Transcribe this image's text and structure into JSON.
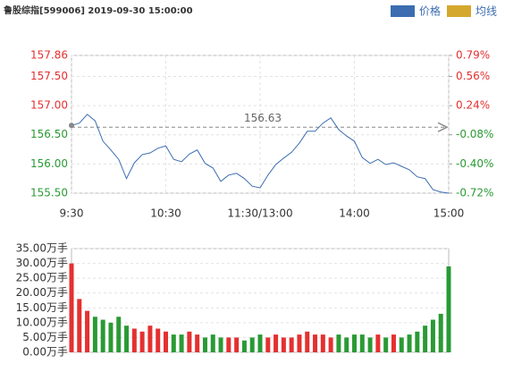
{
  "chart_data": [
    {
      "type": "line",
      "title": "鲁股综指[599006] 2019-09-30 15:00:00",
      "x": [
        0,
        5,
        10,
        15,
        20,
        25,
        30,
        35,
        40,
        45,
        50,
        55,
        60,
        65,
        70,
        75,
        80,
        85,
        90,
        95,
        100,
        105,
        110,
        115,
        120,
        125,
        130,
        135,
        140,
        145,
        150,
        155,
        160,
        165,
        170,
        175,
        180,
        185,
        190,
        195,
        200,
        205,
        210,
        215,
        220,
        225,
        230,
        235,
        240
      ],
      "series": [
        {
          "name": "价格",
          "color": "#3b6db0",
          "values": [
            156.66,
            156.7,
            156.85,
            156.74,
            156.39,
            156.24,
            156.08,
            155.75,
            156.02,
            156.16,
            156.19,
            156.27,
            156.31,
            156.08,
            156.04,
            156.17,
            156.24,
            156.01,
            155.93,
            155.7,
            155.81,
            155.84,
            155.75,
            155.62,
            155.59,
            155.81,
            155.99,
            156.1,
            156.2,
            156.36,
            156.56,
            156.56,
            156.7,
            156.79,
            156.59,
            156.48,
            156.39,
            156.11,
            156.01,
            156.08,
            155.99,
            156.02,
            155.96,
            155.9,
            155.78,
            155.75,
            155.56,
            155.52,
            155.5
          ]
        },
        {
          "name": "均线",
          "color": "#d4a82c"
        }
      ],
      "ref_value": 156.63,
      "xlim": [
        0,
        240
      ],
      "xticks": [
        {
          "value": 0,
          "label": "9:30"
        },
        {
          "value": 60,
          "label": "10:30"
        },
        {
          "value": 120,
          "label": "11:30/13:00"
        },
        {
          "value": 180,
          "label": "14:00"
        },
        {
          "value": 240,
          "label": "15:00"
        }
      ],
      "ylim": [
        155.5,
        157.86
      ],
      "yticks": [
        157.86,
        {
          "value": 157.5,
          "label": "157.50"
        },
        {
          "value": 157,
          "label": "157.00"
        },
        {
          "value": 156.5,
          "label": "156.50"
        },
        {
          "value": 156,
          "label": "156.00"
        },
        {
          "value": 155.5,
          "label": "155.50"
        }
      ],
      "y2lim": [
        -0.72,
        0.79
      ],
      "y2ticks": [
        {
          "value": 0.79,
          "label": "0.79%"
        },
        {
          "value": 0.56,
          "label": "0.56%"
        },
        {
          "value": 0.24,
          "label": "0.24%"
        },
        {
          "value": -0.08,
          "label": "-0.08%"
        },
        {
          "value": -0.4,
          "label": "-0.40%"
        },
        {
          "value": -0.72,
          "label": "-0.72%"
        }
      ],
      "up_color": "#e53030",
      "down_color": "#2a9a35",
      "grid": true
    },
    {
      "type": "bar",
      "x": [
        0,
        5,
        10,
        15,
        20,
        25,
        30,
        35,
        40,
        45,
        50,
        55,
        60,
        65,
        70,
        75,
        80,
        85,
        90,
        95,
        100,
        105,
        110,
        115,
        120,
        125,
        130,
        135,
        140,
        145,
        150,
        155,
        160,
        165,
        170,
        175,
        180,
        185,
        190,
        195,
        200,
        205,
        210,
        215,
        220,
        225,
        230,
        235,
        240
      ],
      "values": [
        30,
        18,
        14,
        12,
        11,
        10,
        12,
        9,
        8,
        7,
        9,
        8,
        7,
        6,
        6,
        7,
        6,
        5,
        6,
        5,
        5,
        5,
        4,
        5,
        6,
        5,
        6,
        5,
        5,
        6,
        7,
        6,
        6,
        5,
        6,
        5,
        6,
        6,
        5,
        6,
        5,
        6,
        5,
        6,
        7,
        9,
        11,
        13,
        29
      ],
      "xlim": [
        0,
        240
      ],
      "ylim": [
        0,
        35
      ],
      "yticks": [
        {
          "value": 35,
          "label": "35.00万手"
        },
        {
          "value": 30,
          "label": "30.00万手"
        },
        {
          "value": 25,
          "label": "25.00万手"
        },
        {
          "value": 20,
          "label": "20.00万手"
        },
        {
          "value": 15,
          "label": "15.00万手"
        },
        {
          "value": 10,
          "label": "10.00万手"
        },
        {
          "value": 5,
          "label": "5.00万手"
        },
        {
          "value": 0,
          "label": "0.00万手"
        }
      ],
      "up_color": "#e53030",
      "down_color": "#2a9a35",
      "grid": true
    }
  ]
}
